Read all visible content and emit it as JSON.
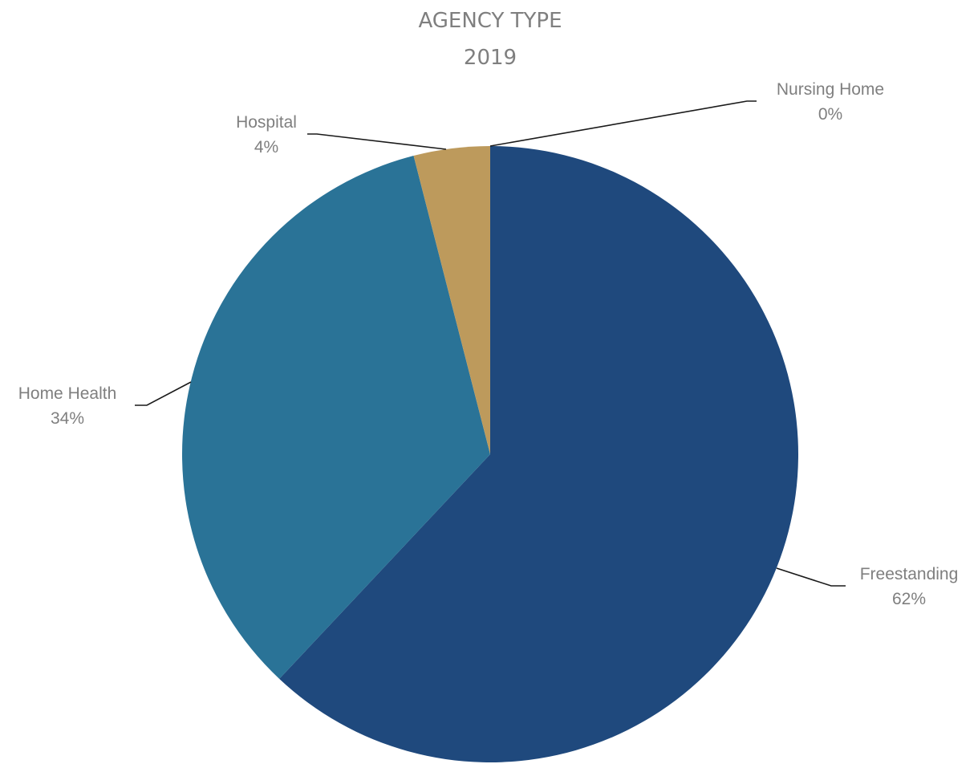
{
  "chart_data": {
    "type": "pie",
    "title": "AGENCY TYPE",
    "subtitle": "2019",
    "categories": [
      "Freestanding",
      "Home Health",
      "Hospital",
      "Nursing Home"
    ],
    "values": [
      62,
      34,
      4,
      0
    ],
    "value_labels": [
      "62%",
      "34%",
      "4%",
      "0%"
    ],
    "colors": [
      "#1f497d",
      "#2a7397",
      "#bd9a5c",
      "#8c8c8c"
    ],
    "start_angle": "12 o'clock",
    "direction": "clockwise",
    "labels": "outside with leader lines",
    "legend": "none"
  }
}
